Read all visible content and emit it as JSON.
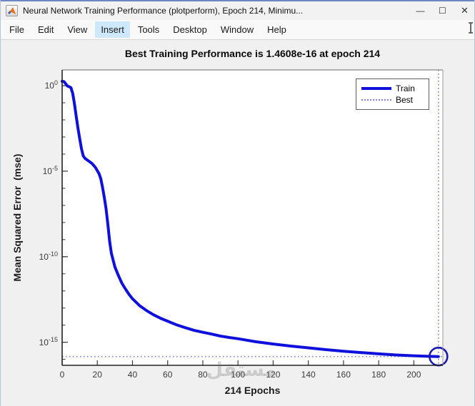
{
  "window": {
    "title": "Neural Network Training Performance (plotperform), Epoch 214, Minimu...",
    "controls": {
      "minimize": "—",
      "maximize": "☐",
      "close": "✕"
    }
  },
  "menu": {
    "items": [
      "File",
      "Edit",
      "View",
      "Insert",
      "Tools",
      "Desktop",
      "Window",
      "Help"
    ],
    "active_item": "Insert"
  },
  "watermark": {
    "text": "مستقل"
  },
  "chart_data": {
    "type": "line",
    "title": "Best Training Performance is 1.4608e-16 at epoch 214",
    "xlabel": "214 Epochs",
    "ylabel": "Mean Squared Error  (mse)",
    "x_scale": "linear",
    "y_scale": "log",
    "xlim": [
      0,
      216.5
    ],
    "ylim_log": [
      -16.35,
      0.92
    ],
    "x_ticks": [
      0,
      20,
      40,
      60,
      80,
      100,
      120,
      140,
      160,
      180,
      200
    ],
    "y_tick_exponents": [
      0,
      -5,
      -10,
      -15
    ],
    "grid": false,
    "legend": {
      "position": "top-right",
      "entries": [
        {
          "label": "Train",
          "style": "solid",
          "color": "#1010dd"
        },
        {
          "label": "Best",
          "style": "dotted",
          "color": "#8585cf"
        }
      ]
    },
    "best": {
      "epoch": 214,
      "value": 1.4608e-16
    },
    "series": [
      {
        "name": "Train",
        "color": "#1010dd",
        "points": [
          [
            0,
            1.8
          ],
          [
            1,
            1.74
          ],
          [
            2,
            1.3
          ],
          [
            3,
            0.95
          ],
          [
            4,
            0.87
          ],
          [
            5,
            0.76
          ],
          [
            6,
            0.35
          ],
          [
            7,
            0.089
          ],
          [
            8,
            0.016
          ],
          [
            9,
            0.0032
          ],
          [
            10,
            0.00079
          ],
          [
            11,
            0.0002
          ],
          [
            12,
            7.9e-05
          ],
          [
            13,
            5.6e-05
          ],
          [
            15,
            4e-05
          ],
          [
            17,
            2.8e-05
          ],
          [
            19,
            1.6e-05
          ],
          [
            21,
            7.1e-06
          ],
          [
            22,
            3.5e-06
          ],
          [
            23,
            1.1e-06
          ],
          [
            24,
            2.8e-07
          ],
          [
            25,
            6.3e-08
          ],
          [
            26,
            7.9e-09
          ],
          [
            27,
            7.9e-10
          ],
          [
            28,
            1.6e-10
          ],
          [
            29,
            6.3e-11
          ],
          [
            30,
            2.5e-11
          ],
          [
            32,
            7.9e-12
          ],
          [
            34,
            2.8e-12
          ],
          [
            36,
            1.3e-12
          ],
          [
            38,
            6.3e-13
          ],
          [
            40,
            3.5e-13
          ],
          [
            44,
            1.4e-13
          ],
          [
            48,
            7.1e-14
          ],
          [
            52,
            4e-14
          ],
          [
            56,
            2.5e-14
          ],
          [
            60,
            1.7e-14
          ],
          [
            65,
            1.05e-14
          ],
          [
            70,
            7.1e-15
          ],
          [
            75,
            5e-15
          ],
          [
            80,
            3.8e-15
          ],
          [
            85,
            3e-15
          ],
          [
            90,
            2.3e-15
          ],
          [
            95,
            1.9e-15
          ],
          [
            100,
            1.6e-15
          ],
          [
            110,
            1.07e-15
          ],
          [
            120,
            7.9e-16
          ],
          [
            130,
            6e-16
          ],
          [
            140,
            4.7e-16
          ],
          [
            150,
            3.7e-16
          ],
          [
            160,
            3e-16
          ],
          [
            170,
            2.5e-16
          ],
          [
            180,
            2.1e-16
          ],
          [
            190,
            1.8e-16
          ],
          [
            200,
            1.62e-16
          ],
          [
            207,
            1.51e-16
          ],
          [
            214,
            1.4608e-16
          ]
        ]
      }
    ]
  }
}
